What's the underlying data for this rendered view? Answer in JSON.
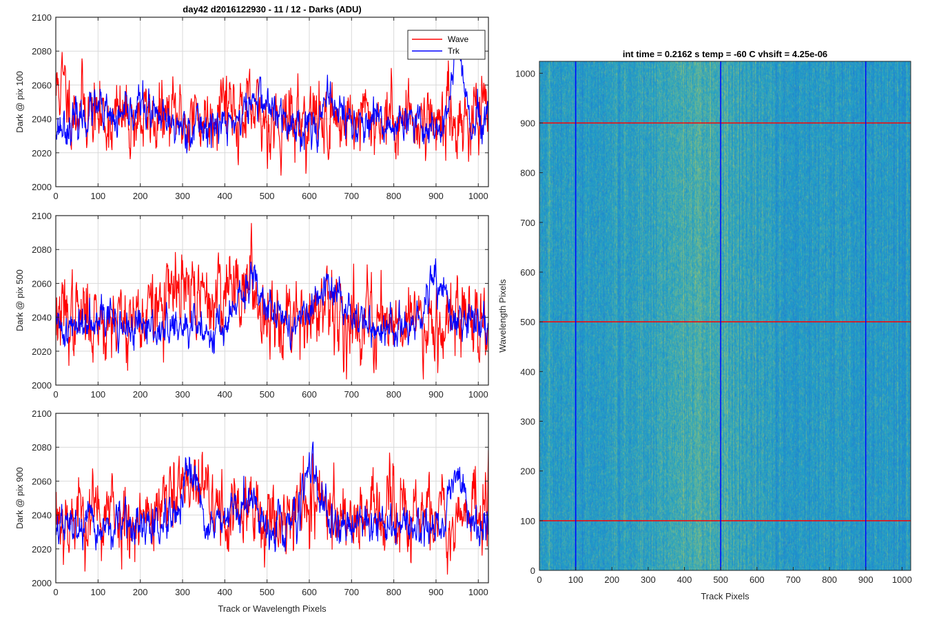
{
  "figure": {
    "left_title": "day42 d2016122930 - 11 / 12 - Darks (ADU)",
    "right_title": "int time = 0.2162 s    temp = -60 C    vhsift = 4.25e-06"
  },
  "colors": {
    "wave": "#ff0000",
    "trk": "#0000ff",
    "grid": "#d9d9d9",
    "heat_low": "#1f6fd6",
    "heat_mid": "#1ea3c8",
    "heat_high": "#b8c95a"
  },
  "chart_data": [
    {
      "type": "line",
      "title": "day42 d2016122930 - 11 / 12 - Darks (ADU)",
      "xlabel": "",
      "ylabel": "Dark @ pix 100",
      "xlim": [
        0,
        1024
      ],
      "ylim": [
        2000,
        2100
      ],
      "xticks": [
        "0",
        "100",
        "200",
        "300",
        "400",
        "500",
        "600",
        "700",
        "800",
        "900",
        "1000"
      ],
      "yticks": [
        "2000",
        "2020",
        "2040",
        "2060",
        "2080",
        "2100"
      ],
      "grid": true,
      "legend": "top-right",
      "series": [
        {
          "name": "Wave",
          "color": "#ff0000",
          "mean": 2040,
          "noise": 11,
          "seed": 11,
          "bumps": [
            [
              10,
              2060,
              15
            ],
            [
              400,
              2055,
              20
            ],
            [
              60,
              2048,
              20
            ]
          ]
        },
        {
          "name": "Trk",
          "color": "#0000ff",
          "mean": 2036,
          "noise": 6,
          "seed": 23,
          "bumps": [
            [
              200,
              2048,
              25
            ],
            [
              480,
              2052,
              30
            ],
            [
              655,
              2050,
              20
            ],
            [
              950,
              2085,
              12
            ],
            [
              90,
              2045,
              25
            ]
          ]
        }
      ]
    },
    {
      "type": "line",
      "title": "",
      "xlabel": "",
      "ylabel": "Dark @ pix 500",
      "xlim": [
        0,
        1024
      ],
      "ylim": [
        2000,
        2100
      ],
      "xticks": [
        "0",
        "100",
        "200",
        "300",
        "400",
        "500",
        "600",
        "700",
        "800",
        "900",
        "1000"
      ],
      "yticks": [
        "2000",
        "2020",
        "2040",
        "2060",
        "2080",
        "2100"
      ],
      "grid": true,
      "series": [
        {
          "name": "Wave",
          "color": "#ff0000",
          "mean": 2040,
          "noise": 12,
          "seed": 37,
          "bumps": [
            [
              300,
              2055,
              40
            ],
            [
              430,
              2062,
              40
            ],
            [
              560,
              2045,
              30
            ]
          ]
        },
        {
          "name": "Trk",
          "color": "#0000ff",
          "mean": 2033,
          "noise": 6,
          "seed": 41,
          "bumps": [
            [
              100,
              2045,
              25
            ],
            [
              470,
              2060,
              35
            ],
            [
              650,
              2055,
              40
            ],
            [
              900,
              2063,
              20
            ],
            [
              990,
              2040,
              20
            ]
          ]
        }
      ]
    },
    {
      "type": "line",
      "title": "",
      "xlabel": "Track or Wavelength Pixels",
      "ylabel": "Dark @ pix 900",
      "xlim": [
        0,
        1024
      ],
      "ylim": [
        2000,
        2100
      ],
      "xticks": [
        "0",
        "100",
        "200",
        "300",
        "400",
        "500",
        "600",
        "700",
        "800",
        "900",
        "1000"
      ],
      "yticks": [
        "2000",
        "2020",
        "2040",
        "2060",
        "2080",
        "2100"
      ],
      "grid": true,
      "series": [
        {
          "name": "Wave",
          "color": "#ff0000",
          "mean": 2040,
          "noise": 12,
          "seed": 53,
          "bumps": [
            [
              320,
              2055,
              40
            ],
            [
              600,
              2048,
              40
            ],
            [
              1020,
              2060,
              6
            ]
          ]
        },
        {
          "name": "Trk",
          "color": "#0000ff",
          "mean": 2033,
          "noise": 6,
          "seed": 67,
          "bumps": [
            [
              320,
              2062,
              18
            ],
            [
              450,
              2047,
              25
            ],
            [
              600,
              2068,
              18
            ],
            [
              730,
              2038,
              30
            ],
            [
              950,
              2068,
              15
            ],
            [
              100,
              2032,
              30
            ]
          ]
        }
      ]
    },
    {
      "type": "heatmap",
      "title": "int time = 0.2162 s    temp = -60 C    vhsift = 4.25e-06",
      "xlabel": "Track Pixels",
      "ylabel": "Wavelength Pixels",
      "xlim": [
        0,
        1024
      ],
      "ylim": [
        0,
        1024
      ],
      "xticks": [
        "0",
        "100",
        "200",
        "300",
        "400",
        "500",
        "600",
        "700",
        "800",
        "900",
        "1000"
      ],
      "yticks": [
        "0",
        "100",
        "200",
        "300",
        "400",
        "500",
        "600",
        "700",
        "800",
        "900",
        "1000"
      ],
      "vlines": [
        100,
        500,
        900
      ],
      "hlines": [
        100,
        500,
        900
      ],
      "vline_color": "#0000ff",
      "hline_color": "#ff0000"
    }
  ],
  "legend": {
    "entries": [
      "Wave",
      "Trk"
    ]
  }
}
